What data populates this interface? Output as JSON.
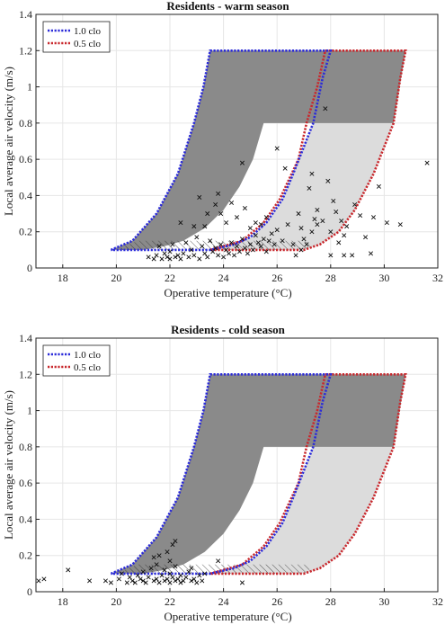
{
  "chart_data": [
    {
      "type": "scatter",
      "title": "Residents - warm season",
      "xlabel": "Operative temperature (°C)",
      "ylabel": "Local average air velocity (m/s)",
      "xlim": [
        17,
        32
      ],
      "ylim": [
        0,
        1.4
      ],
      "xticks": [
        18,
        20,
        22,
        24,
        26,
        28,
        30,
        32
      ],
      "yticks": [
        0,
        0.2,
        0.4,
        0.6,
        0.8,
        1,
        1.2,
        1.4
      ],
      "xtick_labels": [
        "18",
        "20",
        "22",
        "24",
        "26",
        "28",
        "30",
        "32"
      ],
      "ytick_labels": [
        "0",
        "0.2",
        "0.4",
        "0.6",
        "0.8",
        "1",
        "1.2",
        "1.4"
      ],
      "grid": true,
      "legend": {
        "position": "top-left",
        "entries": [
          {
            "label": "1.0 clo",
            "color": "#2b2bd9"
          },
          {
            "label": "0.5 clo",
            "color": "#c8282d"
          }
        ]
      },
      "points": [
        [
          21.2,
          0.06
        ],
        [
          21.4,
          0.05
        ],
        [
          21.5,
          0.07
        ],
        [
          21.6,
          0.12
        ],
        [
          21.7,
          0.05
        ],
        [
          21.8,
          0.08
        ],
        [
          21.9,
          0.06
        ],
        [
          22.0,
          0.05
        ],
        [
          22.0,
          0.09
        ],
        [
          22.1,
          0.13
        ],
        [
          22.2,
          0.06
        ],
        [
          22.3,
          0.07
        ],
        [
          22.4,
          0.05
        ],
        [
          22.5,
          0.08
        ],
        [
          22.6,
          0.14
        ],
        [
          22.7,
          0.06
        ],
        [
          22.8,
          0.1
        ],
        [
          22.9,
          0.07
        ],
        [
          23.0,
          0.17
        ],
        [
          23.1,
          0.05
        ],
        [
          23.2,
          0.12
        ],
        [
          23.3,
          0.08
        ],
        [
          23.4,
          0.06
        ],
        [
          23.5,
          0.15
        ],
        [
          23.6,
          0.09
        ],
        [
          23.7,
          0.11
        ],
        [
          23.8,
          0.07
        ],
        [
          23.9,
          0.13
        ],
        [
          24.0,
          0.06
        ],
        [
          24.1,
          0.1
        ],
        [
          24.2,
          0.08
        ],
        [
          24.3,
          0.14
        ],
        [
          24.4,
          0.07
        ],
        [
          24.5,
          0.12
        ],
        [
          24.6,
          0.09
        ],
        [
          24.7,
          0.16
        ],
        [
          24.8,
          0.11
        ],
        [
          24.9,
          0.08
        ],
        [
          25.0,
          0.13
        ],
        [
          25.1,
          0.1
        ],
        [
          25.2,
          0.18
        ],
        [
          25.3,
          0.14
        ],
        [
          25.4,
          0.12
        ],
        [
          25.5,
          0.16
        ],
        [
          25.6,
          0.09
        ],
        [
          25.7,
          0.15
        ],
        [
          25.9,
          0.13
        ],
        [
          22.4,
          0.25
        ],
        [
          22.9,
          0.23
        ],
        [
          23.1,
          0.39
        ],
        [
          23.3,
          0.23
        ],
        [
          23.4,
          0.3
        ],
        [
          23.7,
          0.35
        ],
        [
          23.8,
          0.41
        ],
        [
          23.9,
          0.3
        ],
        [
          24.1,
          0.25
        ],
        [
          24.3,
          0.36
        ],
        [
          24.5,
          0.28
        ],
        [
          24.7,
          0.58
        ],
        [
          24.8,
          0.33
        ],
        [
          25.0,
          0.22
        ],
        [
          25.2,
          0.25
        ],
        [
          25.4,
          0.24
        ],
        [
          25.6,
          0.28
        ],
        [
          25.8,
          0.19
        ],
        [
          26.0,
          0.66
        ],
        [
          26.0,
          0.21
        ],
        [
          26.2,
          0.15
        ],
        [
          26.4,
          0.24
        ],
        [
          26.6,
          0.13
        ],
        [
          26.8,
          0.3
        ],
        [
          26.9,
          0.1
        ],
        [
          27.0,
          0.16
        ],
        [
          27.1,
          0.13
        ],
        [
          27.2,
          0.44
        ],
        [
          27.3,
          0.52
        ],
        [
          27.4,
          0.27
        ],
        [
          27.5,
          0.32
        ],
        [
          27.5,
          0.24
        ],
        [
          27.7,
          0.26
        ],
        [
          27.8,
          0.88
        ],
        [
          27.9,
          0.48
        ],
        [
          28.0,
          0.2
        ],
        [
          28.1,
          0.37
        ],
        [
          28.2,
          0.31
        ],
        [
          28.3,
          0.14
        ],
        [
          28.4,
          0.26
        ],
        [
          28.5,
          0.18
        ],
        [
          28.6,
          0.23
        ],
        [
          28.9,
          0.35
        ],
        [
          29.1,
          0.29
        ],
        [
          29.3,
          0.17
        ],
        [
          29.5,
          0.08
        ],
        [
          29.6,
          0.28
        ],
        [
          29.8,
          0.45
        ],
        [
          30.1,
          0.25
        ],
        [
          30.6,
          0.24
        ],
        [
          31.6,
          0.58
        ],
        [
          26.3,
          0.55
        ],
        [
          26.7,
          0.07
        ],
        [
          28.0,
          0.07
        ],
        [
          28.5,
          0.07
        ],
        [
          28.8,
          0.07
        ],
        [
          27.3,
          0.2
        ],
        [
          26.9,
          0.22
        ]
      ]
    },
    {
      "type": "scatter",
      "title": "Residents - cold season",
      "xlabel": "Operative temperature (°C)",
      "ylabel": "Local average air velocity (m/s)",
      "xlim": [
        17,
        32
      ],
      "ylim": [
        0,
        1.4
      ],
      "xticks": [
        18,
        20,
        22,
        24,
        26,
        28,
        30,
        32
      ],
      "yticks": [
        0,
        0.2,
        0.4,
        0.6,
        0.8,
        1,
        1.2,
        1.4
      ],
      "xtick_labels": [
        "18",
        "20",
        "22",
        "24",
        "26",
        "28",
        "30",
        "32"
      ],
      "ytick_labels": [
        "0",
        "0.2",
        "0.4",
        "0.6",
        "0.8",
        "1",
        "1.2",
        "1.4"
      ],
      "grid": true,
      "legend": {
        "position": "top-left",
        "entries": [
          {
            "label": "1.0 clo",
            "color": "#2b2bd9"
          },
          {
            "label": "0.5 clo",
            "color": "#c8282d"
          }
        ]
      },
      "points": [
        [
          17.1,
          0.06
        ],
        [
          17.3,
          0.07
        ],
        [
          18.2,
          0.12
        ],
        [
          19.0,
          0.06
        ],
        [
          19.6,
          0.06
        ],
        [
          19.8,
          0.05
        ],
        [
          20.1,
          0.07
        ],
        [
          20.2,
          0.1
        ],
        [
          20.4,
          0.05
        ],
        [
          20.5,
          0.08
        ],
        [
          20.6,
          0.06
        ],
        [
          20.7,
          0.05
        ],
        [
          20.8,
          0.09
        ],
        [
          20.9,
          0.07
        ],
        [
          21.0,
          0.06
        ],
        [
          21.0,
          0.11
        ],
        [
          21.1,
          0.05
        ],
        [
          21.2,
          0.08
        ],
        [
          21.3,
          0.13
        ],
        [
          21.4,
          0.06
        ],
        [
          21.5,
          0.07
        ],
        [
          21.5,
          0.15
        ],
        [
          21.6,
          0.05
        ],
        [
          21.7,
          0.09
        ],
        [
          21.8,
          0.06
        ],
        [
          21.8,
          0.12
        ],
        [
          21.9,
          0.07
        ],
        [
          22.0,
          0.05
        ],
        [
          22.0,
          0.1
        ],
        [
          22.1,
          0.08
        ],
        [
          22.2,
          0.06
        ],
        [
          22.2,
          0.14
        ],
        [
          22.3,
          0.07
        ],
        [
          22.4,
          0.05
        ],
        [
          22.4,
          0.09
        ],
        [
          22.5,
          0.06
        ],
        [
          22.6,
          0.08
        ],
        [
          22.7,
          0.11
        ],
        [
          22.8,
          0.06
        ],
        [
          22.9,
          0.07
        ],
        [
          23.0,
          0.05
        ],
        [
          23.1,
          0.09
        ],
        [
          23.2,
          0.06
        ],
        [
          23.3,
          0.1
        ],
        [
          21.4,
          0.19
        ],
        [
          21.6,
          0.2
        ],
        [
          21.9,
          0.22
        ],
        [
          22.1,
          0.26
        ],
        [
          22.2,
          0.28
        ],
        [
          23.8,
          0.17
        ],
        [
          24.7,
          0.05
        ],
        [
          22.8,
          0.13
        ],
        [
          22.0,
          0.17
        ]
      ]
    }
  ]
}
